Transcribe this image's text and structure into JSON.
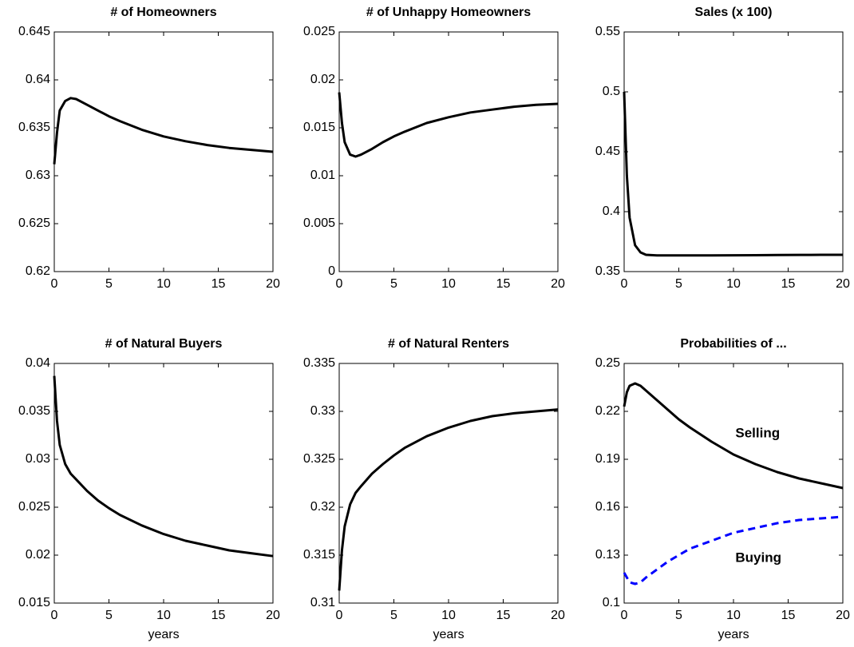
{
  "chart_data": [
    {
      "type": "line",
      "title": "# of Homeowners",
      "xlim": [
        0,
        20
      ],
      "xticks": [
        0,
        5,
        10,
        15,
        20
      ],
      "ylim": [
        0.62,
        0.645
      ],
      "yticks": [
        0.62,
        0.625,
        0.63,
        0.635,
        0.64,
        0.645
      ],
      "x": [
        0,
        0.25,
        0.5,
        1,
        1.5,
        2,
        3,
        4,
        5,
        6,
        8,
        10,
        12,
        14,
        16,
        18,
        20
      ],
      "values": [
        0.6312,
        0.6345,
        0.6368,
        0.6378,
        0.6381,
        0.638,
        0.6374,
        0.6368,
        0.6362,
        0.6357,
        0.6348,
        0.6341,
        0.6336,
        0.6332,
        0.6329,
        0.6327,
        0.6325
      ],
      "color": "#000000"
    },
    {
      "type": "line",
      "title": "# of Unhappy Homeowners",
      "xlim": [
        0,
        20
      ],
      "xticks": [
        0,
        5,
        10,
        15,
        20
      ],
      "ylim": [
        0,
        0.025
      ],
      "yticks": [
        0,
        0.005,
        0.01,
        0.015,
        0.02,
        0.025
      ],
      "x": [
        0,
        0.25,
        0.5,
        1,
        1.5,
        2,
        3,
        4,
        5,
        6,
        8,
        10,
        12,
        14,
        16,
        18,
        20
      ],
      "values": [
        0.0187,
        0.0155,
        0.0135,
        0.0122,
        0.012,
        0.0122,
        0.0128,
        0.0135,
        0.0141,
        0.0146,
        0.0155,
        0.0161,
        0.0166,
        0.0169,
        0.0172,
        0.0174,
        0.0175
      ],
      "color": "#000000"
    },
    {
      "type": "line",
      "title": "Sales (x 100)",
      "xlim": [
        0,
        20
      ],
      "xticks": [
        0,
        5,
        10,
        15,
        20
      ],
      "ylim": [
        0.35,
        0.55
      ],
      "yticks": [
        0.35,
        0.4,
        0.45,
        0.5,
        0.55
      ],
      "x": [
        0,
        0.25,
        0.5,
        1,
        1.5,
        2,
        3,
        4,
        5,
        6,
        8,
        10,
        12,
        14,
        16,
        18,
        20
      ],
      "values": [
        0.5,
        0.43,
        0.395,
        0.372,
        0.366,
        0.364,
        0.3635,
        0.3635,
        0.3635,
        0.3635,
        0.3635,
        0.3636,
        0.3637,
        0.3638,
        0.3639,
        0.364,
        0.364
      ],
      "color": "#000000"
    },
    {
      "type": "line",
      "title": "# of Natural Buyers",
      "xlabel": "years",
      "xlim": [
        0,
        20
      ],
      "xticks": [
        0,
        5,
        10,
        15,
        20
      ],
      "ylim": [
        0.015,
        0.04
      ],
      "yticks": [
        0.015,
        0.02,
        0.025,
        0.03,
        0.035,
        0.04
      ],
      "x": [
        0,
        0.25,
        0.5,
        1,
        1.5,
        2,
        3,
        4,
        5,
        6,
        8,
        10,
        12,
        14,
        16,
        18,
        20
      ],
      "values": [
        0.0387,
        0.034,
        0.0315,
        0.0295,
        0.0285,
        0.0279,
        0.0267,
        0.0257,
        0.0249,
        0.0242,
        0.0231,
        0.0222,
        0.0215,
        0.021,
        0.0205,
        0.0202,
        0.0199
      ],
      "color": "#000000"
    },
    {
      "type": "line",
      "title": "# of Natural Renters",
      "xlabel": "years",
      "xlim": [
        0,
        20
      ],
      "xticks": [
        0,
        5,
        10,
        15,
        20
      ],
      "ylim": [
        0.31,
        0.335
      ],
      "yticks": [
        0.31,
        0.315,
        0.32,
        0.325,
        0.33,
        0.335
      ],
      "x": [
        0,
        0.25,
        0.5,
        1,
        1.5,
        2,
        3,
        4,
        5,
        6,
        8,
        10,
        12,
        14,
        16,
        18,
        20
      ],
      "values": [
        0.3113,
        0.3155,
        0.318,
        0.3203,
        0.3215,
        0.3222,
        0.3235,
        0.3245,
        0.3254,
        0.3262,
        0.3274,
        0.3283,
        0.329,
        0.3295,
        0.3298,
        0.33,
        0.3302
      ],
      "color": "#000000"
    },
    {
      "type": "line",
      "title": "Probabilities of ...",
      "xlabel": "years",
      "xlim": [
        0,
        20
      ],
      "xticks": [
        0,
        5,
        10,
        15,
        20
      ],
      "ylim": [
        0.1,
        0.25
      ],
      "yticks": [
        0.1,
        0.13,
        0.16,
        0.19,
        0.22,
        0.25
      ],
      "x": [
        0,
        0.25,
        0.5,
        1,
        1.5,
        2,
        3,
        4,
        5,
        6,
        8,
        10,
        12,
        14,
        16,
        18,
        20
      ],
      "series": [
        {
          "name": "Selling",
          "color": "#000000",
          "dash": false,
          "values": [
            0.223,
            0.232,
            0.236,
            0.2375,
            0.236,
            0.233,
            0.227,
            0.221,
            0.215,
            0.21,
            0.201,
            0.193,
            0.187,
            0.182,
            0.178,
            0.175,
            0.172
          ]
        },
        {
          "name": "Buying",
          "color": "#0000ff",
          "dash": true,
          "values": [
            0.119,
            0.116,
            0.113,
            0.112,
            0.113,
            0.116,
            0.121,
            0.126,
            0.13,
            0.134,
            0.139,
            0.144,
            0.147,
            0.15,
            0.152,
            0.153,
            0.154
          ]
        }
      ]
    }
  ]
}
